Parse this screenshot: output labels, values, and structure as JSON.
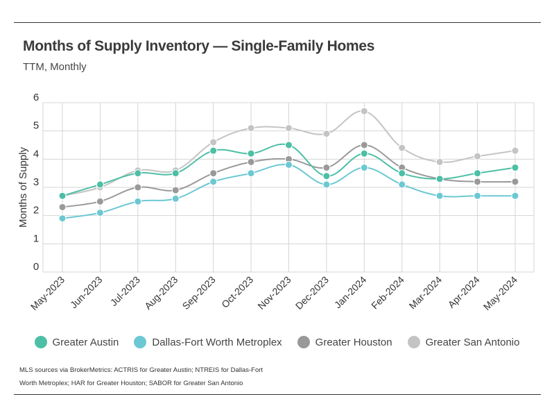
{
  "title": "Months of Supply Inventory — Single-Family Homes",
  "subtitle": "TTM, Monthly",
  "source": "MLS sources via BrokerMetrics: ACTRIS for Greater Austin; NTREIS for Dallas-Fort Worth Metroplex; HAR for Greater Houston; SABOR for Greater San Antonio",
  "chart_data": {
    "type": "line",
    "title": "Months of Supply Inventory — Single-Family Homes",
    "subtitle": "TTM, Monthly",
    "xlabel": "",
    "ylabel": "Months of Supply",
    "ylim": [
      0,
      6
    ],
    "yticks": [
      "0",
      "1",
      "2",
      "3",
      "4",
      "5",
      "6"
    ],
    "grid": true,
    "legend": "bottom",
    "categories": [
      "May-2023",
      "Jun-2023",
      "Jul-2023",
      "Aug-2023",
      "Sep-2023",
      "Oct-2023",
      "Nov-2023",
      "Dec-2023",
      "Jan-2024",
      "Feb-2024",
      "Mar-2024",
      "Apr-2024",
      "May-2024"
    ],
    "series": [
      {
        "name": "Greater Austin",
        "color": "#4dbfa6",
        "values": [
          2.7,
          3.1,
          3.5,
          3.5,
          4.3,
          4.2,
          4.5,
          3.4,
          4.2,
          3.5,
          3.3,
          3.5,
          3.7
        ]
      },
      {
        "name": "Dallas-Fort Worth Metroplex",
        "color": "#6cc8d3",
        "values": [
          1.9,
          2.1,
          2.5,
          2.6,
          3.2,
          3.5,
          3.8,
          3.1,
          3.7,
          3.1,
          2.7,
          2.7,
          2.7
        ]
      },
      {
        "name": "Greater Houston",
        "color": "#999999",
        "values": [
          2.3,
          2.5,
          3.0,
          2.9,
          3.5,
          3.9,
          4.0,
          3.7,
          4.5,
          3.7,
          3.3,
          3.2,
          3.2
        ]
      },
      {
        "name": "Greater San Antonio",
        "color": "#c4c4c4",
        "values": [
          2.7,
          3.0,
          3.6,
          3.6,
          4.6,
          5.1,
          5.1,
          4.9,
          5.7,
          4.4,
          3.9,
          4.1,
          4.3
        ]
      }
    ]
  }
}
